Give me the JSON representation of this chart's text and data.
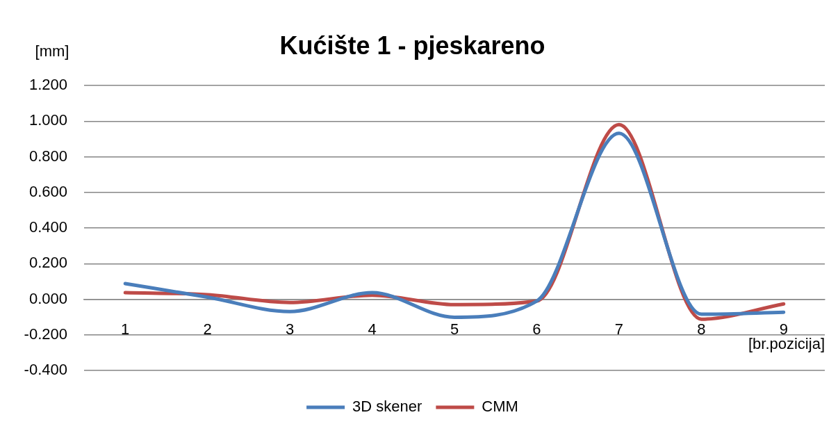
{
  "chart_data": {
    "type": "line",
    "title": "Kućište 1 - pjeskareno",
    "xlabel": "[br.pozicija]",
    "ylabel": "[mm]",
    "categories": [
      "1",
      "2",
      "3",
      "4",
      "5",
      "6",
      "7",
      "8",
      "9"
    ],
    "series": [
      {
        "name": "3D skener",
        "color": "#4a7ebb",
        "values": [
          0.088,
          0.012,
          -0.069,
          0.037,
          -0.101,
          -0.01,
          0.932,
          -0.084,
          -0.073
        ]
      },
      {
        "name": "CMM",
        "color": "#be4b48",
        "values": [
          0.037,
          0.026,
          -0.018,
          0.023,
          -0.03,
          -0.01,
          0.981,
          -0.112,
          -0.026
        ]
      }
    ],
    "ylim": [
      -0.4,
      1.2
    ],
    "yticks": [
      {
        "value": -0.4,
        "label": "-0.400"
      },
      {
        "value": -0.2,
        "label": "-0.200"
      },
      {
        "value": 0,
        "label": "0.000"
      },
      {
        "value": 0.2,
        "label": "0.200"
      },
      {
        "value": 0.4,
        "label": "0.400"
      },
      {
        "value": 0.6,
        "label": "0.600"
      },
      {
        "value": 0.8,
        "label": "0.800"
      },
      {
        "value": 1,
        "label": "1.000"
      },
      {
        "value": 1.2,
        "label": "1.200"
      }
    ],
    "grid": "y",
    "legend": "bottom",
    "marker": "none",
    "line_style": "solid"
  }
}
